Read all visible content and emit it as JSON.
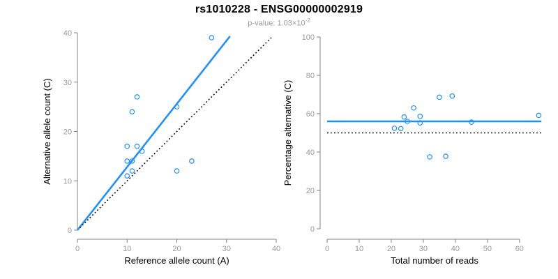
{
  "colors": {
    "accent_blue": "#1E90FF",
    "dotted_line_black": "#000000",
    "axis_line_gray": "#808080",
    "tick_label_gray": "#999999",
    "axis_title_black": "#000000",
    "subtitle_gray": "#999999",
    "background_white": "#FFFFFF"
  },
  "chart_data": {
    "title": "rs1010228 - ENSG00000002919",
    "subtitle": "p-value: 1.03×10^-2",
    "subtitle_prefix": "p-value: 1.03×10",
    "subtitle_exponent": "-2",
    "type": "scatter",
    "grid": false,
    "legend": null,
    "panels": [
      {
        "id": "allele-count-scatter",
        "type": "scatter",
        "xlabel": "Reference allele count (A)",
        "ylabel": "Alternative allele count (C)",
        "xlim": [
          0,
          40
        ],
        "ylim": [
          0,
          40
        ],
        "xticks": [
          0,
          10,
          20,
          30,
          40
        ],
        "yticks": [
          0,
          10,
          20,
          30,
          40
        ],
        "points": [
          [
            27,
            39
          ],
          [
            12,
            27
          ],
          [
            11,
            24
          ],
          [
            20,
            25
          ],
          [
            10,
            17
          ],
          [
            12,
            17
          ],
          [
            13,
            16
          ],
          [
            23,
            14
          ],
          [
            10,
            14
          ],
          [
            11,
            14
          ],
          [
            20,
            12
          ],
          [
            11,
            12
          ],
          [
            10,
            11
          ]
        ],
        "lines": [
          {
            "name": "regression-line",
            "style": "solid",
            "color": "accent_blue",
            "width": 2.6,
            "x1": 0,
            "y1": 0,
            "x2": 30.7,
            "y2": 39.3
          },
          {
            "name": "identity-line",
            "style": "dotted",
            "color": "dotted_line_black",
            "width": 1.6,
            "x1": 0.5,
            "y1": 0.5,
            "x2": 39.3,
            "y2": 39.3
          }
        ]
      },
      {
        "id": "percentage-vs-reads-scatter",
        "type": "scatter",
        "xlabel": "Total number of reads",
        "ylabel": "Percentage alternative (C)",
        "xlim": [
          0,
          67
        ],
        "ylim": [
          0,
          100
        ],
        "xticks": [
          0,
          10,
          20,
          30,
          40,
          50,
          60
        ],
        "yticks": [
          0,
          20,
          40,
          60,
          80,
          100
        ],
        "points": [
          [
            66,
            59.1
          ],
          [
            39,
            69.2
          ],
          [
            35,
            68.6
          ],
          [
            45,
            55.6
          ],
          [
            27,
            63.0
          ],
          [
            29,
            58.6
          ],
          [
            29,
            55.2
          ],
          [
            37,
            37.8
          ],
          [
            24,
            58.3
          ],
          [
            25,
            56.0
          ],
          [
            32,
            37.5
          ],
          [
            23,
            52.2
          ],
          [
            21,
            52.4
          ]
        ],
        "lines": [
          {
            "name": "mean-percentage-line",
            "style": "solid",
            "color": "accent_blue",
            "width": 2.6,
            "x1": 0,
            "y1": 56,
            "x2": 66.8,
            "y2": 56
          },
          {
            "name": "fifty-percent-line",
            "style": "dotted",
            "color": "dotted_line_black",
            "width": 1.6,
            "x1": 0,
            "y1": 50,
            "x2": 66.8,
            "y2": 50
          }
        ]
      }
    ]
  }
}
